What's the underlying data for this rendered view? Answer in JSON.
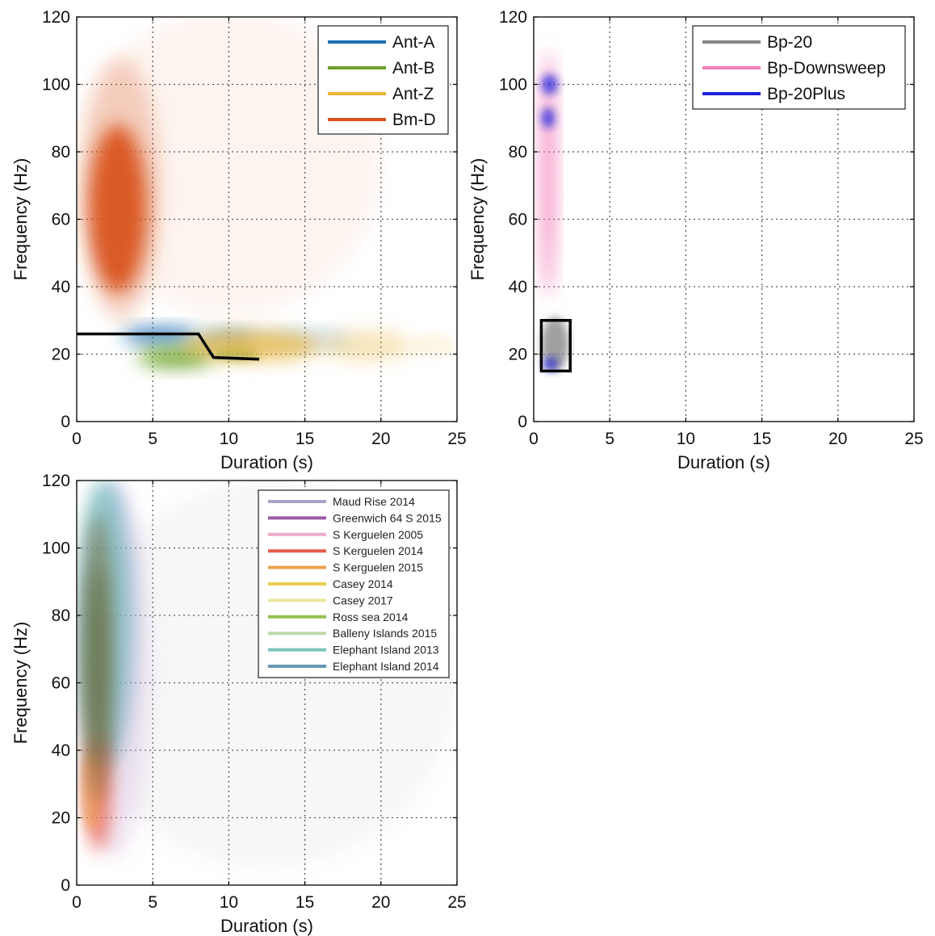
{
  "chart_data": [
    {
      "type": "heatmap",
      "xlabel": "Duration (s)",
      "ylabel": "Frequency (Hz)",
      "xlim": [
        0,
        25
      ],
      "ylim": [
        0,
        120
      ],
      "xticks": [
        0,
        5,
        10,
        15,
        20,
        25
      ],
      "yticks": [
        0,
        20,
        40,
        60,
        80,
        100,
        120
      ],
      "grid": true,
      "legend_position": "top-right",
      "series": [
        {
          "name": "Ant-A",
          "color": "#1f6fb5",
          "blobs": [
            {
              "x": [
                3,
                8
              ],
              "y": [
                23,
                28
              ],
              "opacity": 0.85
            },
            {
              "x": [
                8,
                12
              ],
              "y": [
                22,
                27
              ],
              "opacity": 0.55
            },
            {
              "x": [
                12,
                18
              ],
              "y": [
                22,
                27
              ],
              "opacity": 0.25
            }
          ]
        },
        {
          "name": "Ant-B",
          "color": "#6aa22a",
          "blobs": [
            {
              "x": [
                4,
                9
              ],
              "y": [
                16,
                22
              ],
              "opacity": 0.9
            },
            {
              "x": [
                9,
                12
              ],
              "y": [
                18,
                22
              ],
              "opacity": 0.6
            }
          ]
        },
        {
          "name": "Ant-Z",
          "color": "#e8b43a",
          "blobs": [
            {
              "x": [
                7,
                16
              ],
              "y": [
                18,
                27
              ],
              "opacity": 0.75
            },
            {
              "x": [
                16,
                22
              ],
              "y": [
                18,
                27
              ],
              "opacity": 0.35
            },
            {
              "x": [
                22,
                25
              ],
              "y": [
                19,
                26
              ],
              "opacity": 0.12
            }
          ]
        },
        {
          "name": "Bm-D",
          "color": "#d9531e",
          "blobs": [
            {
              "x": [
                0.8,
                4.6
              ],
              "y": [
                38,
                88
              ],
              "opacity": 0.95
            },
            {
              "x": [
                0.3,
                5.5
              ],
              "y": [
                30,
                108
              ],
              "opacity": 0.25
            },
            {
              "x": [
                0,
                20
              ],
              "y": [
                32,
                122
              ],
              "opacity": 0.06
            }
          ]
        }
      ],
      "overlay_line": {
        "color": "#000000",
        "x": [
          0,
          8,
          9,
          12
        ],
        "y": [
          26,
          26,
          19,
          18.5
        ]
      }
    },
    {
      "type": "heatmap",
      "xlabel": "Duration (s)",
      "ylabel": "Frequency (Hz)",
      "xlim": [
        0,
        25
      ],
      "ylim": [
        0,
        120
      ],
      "xticks": [
        0,
        5,
        10,
        15,
        20,
        25
      ],
      "yticks": [
        0,
        20,
        40,
        60,
        80,
        100,
        120
      ],
      "grid": true,
      "legend_position": "top-right",
      "series": [
        {
          "name": "Bp-20",
          "color": "#888888",
          "blobs": [
            {
              "x": [
                0.5,
                2.3
              ],
              "y": [
                15,
                31
              ],
              "opacity": 0.8
            }
          ]
        },
        {
          "name": "Bp-Downsweep",
          "color": "#f47fba",
          "blobs": [
            {
              "x": [
                0.5,
                1.4
              ],
              "y": [
                37,
                110
              ],
              "opacity": 0.9
            }
          ]
        },
        {
          "name": "Bp-20Plus",
          "color": "#1e1edc",
          "blobs": [
            {
              "x": [
                0.5,
                1.6
              ],
              "y": [
                97,
                103
              ],
              "opacity": 0.7
            },
            {
              "x": [
                0.5,
                1.4
              ],
              "y": [
                87,
                93
              ],
              "opacity": 0.7
            },
            {
              "x": [
                0.6,
                1.6
              ],
              "y": [
                15,
                19
              ],
              "opacity": 0.7
            }
          ]
        }
      ],
      "overlay_rect": {
        "color": "#000000",
        "x": [
          0.5,
          2.4
        ],
        "y": [
          15,
          30
        ]
      }
    },
    {
      "type": "heatmap",
      "xlabel": "Duration (s)",
      "ylabel": "Frequency (Hz)",
      "xlim": [
        0,
        25
      ],
      "ylim": [
        0,
        120
      ],
      "xticks": [
        0,
        5,
        10,
        15,
        20,
        25
      ],
      "yticks": [
        0,
        20,
        40,
        60,
        80,
        100,
        120
      ],
      "grid": true,
      "legend_position": "top-right",
      "series": [
        {
          "name": "Maud Rise 2014",
          "color": "#aaa3c8"
        },
        {
          "name": "Greenwich 64 S  2015",
          "color": "#9c5aa8"
        },
        {
          "name": "S Kerguelen 2005",
          "color": "#eeaacc"
        },
        {
          "name": "S Kerguelen 2014",
          "color": "#e85a4a"
        },
        {
          "name": "S Kerguelen 2015",
          "color": "#eda04f"
        },
        {
          "name": "Casey 2014",
          "color": "#ead050"
        },
        {
          "name": "Casey 2017",
          "color": "#ece6a0"
        },
        {
          "name": "Ross sea 2014",
          "color": "#94c050"
        },
        {
          "name": "Balleny Islands 2015",
          "color": "#bcd8a8"
        },
        {
          "name": "Elephant Island 2013",
          "color": "#7cc4bc"
        },
        {
          "name": "Elephant Island 2014",
          "color": "#6a96b4"
        }
      ],
      "blobs": [
        {
          "x": [
            0,
            25
          ],
          "y": [
            5,
            120
          ],
          "color": "#9a9a9a",
          "opacity": 0.08
        },
        {
          "x": [
            0.2,
            4.8
          ],
          "y": [
            8,
            120
          ],
          "color": "#d4b4dc",
          "opacity": 0.35
        },
        {
          "x": [
            0.3,
            3.8
          ],
          "y": [
            35,
            120
          ],
          "color": "#6aa8c8",
          "opacity": 0.55
        },
        {
          "x": [
            0.2,
            3.0
          ],
          "y": [
            40,
            120
          ],
          "color": "#7cc4bc",
          "opacity": 0.6
        },
        {
          "x": [
            0.6,
            2.2
          ],
          "y": [
            10,
            45
          ],
          "color": "#e85a4a",
          "opacity": 0.8
        },
        {
          "x": [
            0.3,
            1.6
          ],
          "y": [
            16,
            40
          ],
          "color": "#eda04f",
          "opacity": 0.55
        },
        {
          "x": [
            0.4,
            2.4
          ],
          "y": [
            25,
            110
          ],
          "color": "#7a6a3a",
          "opacity": 0.6
        },
        {
          "x": [
            0.6,
            2.0
          ],
          "y": [
            35,
            95
          ],
          "color": "#5a6a3a",
          "opacity": 0.55
        }
      ]
    }
  ]
}
